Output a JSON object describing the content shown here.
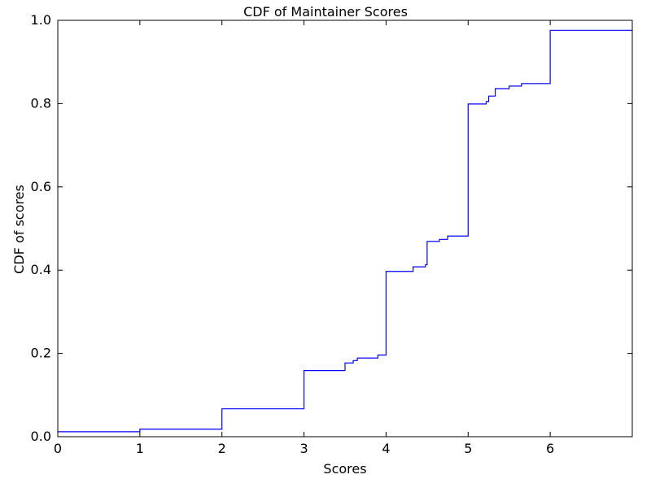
{
  "chart_data": {
    "type": "line",
    "step": true,
    "title": "CDF of Maintainer Scores",
    "xlabel": "Scores",
    "ylabel": "CDF of scores",
    "xlim": [
      0,
      7
    ],
    "ylim": [
      0,
      1.0
    ],
    "xticks": [
      0,
      1,
      2,
      3,
      4,
      5,
      6
    ],
    "xtick_labels": [
      "0",
      "1",
      "2",
      "3",
      "4",
      "5",
      "6"
    ],
    "yticks": [
      0.0,
      0.2,
      0.4,
      0.6,
      0.8,
      1.0
    ],
    "ytick_labels": [
      "0.0",
      "0.2",
      "0.4",
      "0.6",
      "0.8",
      "1.0"
    ],
    "grid": false,
    "series": [
      {
        "name": "CDF",
        "color": "#0000ff",
        "points": [
          [
            0.0,
            0.012
          ],
          [
            1.0,
            0.018
          ],
          [
            2.0,
            0.067
          ],
          [
            3.0,
            0.159
          ],
          [
            3.5,
            0.177
          ],
          [
            3.6,
            0.183
          ],
          [
            3.65,
            0.189
          ],
          [
            3.9,
            0.196
          ],
          [
            4.0,
            0.397
          ],
          [
            4.33,
            0.408
          ],
          [
            4.48,
            0.413
          ],
          [
            4.5,
            0.469
          ],
          [
            4.65,
            0.474
          ],
          [
            4.75,
            0.482
          ],
          [
            5.0,
            0.799
          ],
          [
            5.22,
            0.805
          ],
          [
            5.25,
            0.818
          ],
          [
            5.33,
            0.836
          ],
          [
            5.5,
            0.842
          ],
          [
            5.65,
            0.848
          ],
          [
            6.0,
            0.976
          ],
          [
            7.0,
            0.976
          ]
        ]
      }
    ]
  }
}
